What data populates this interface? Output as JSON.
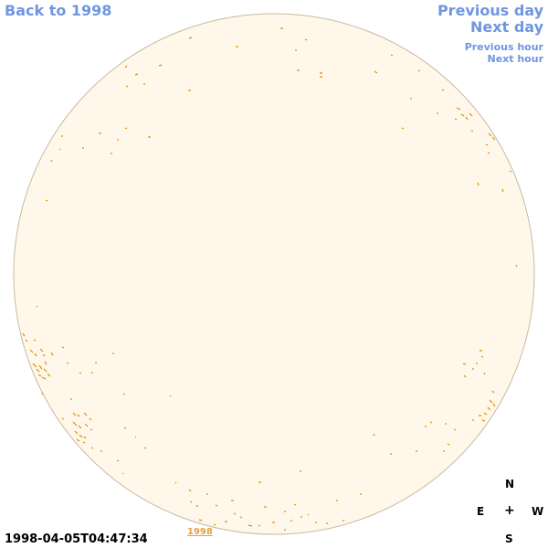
{
  "nav": {
    "back": "Back to 1998",
    "previous_day": "Previous day",
    "next_day": "Next day",
    "previous_hour": "Previous hour",
    "next_hour": "Next hour"
  },
  "timestamp": "1998-04-05T04:47:34",
  "year_link": "1998",
  "compass": {
    "n": "N",
    "e": "E",
    "center": "+",
    "w": "W",
    "s": "S"
  },
  "colors": {
    "disk_fill": "#fff8ea",
    "disk_stroke": "#c9b9a2",
    "contour": "#e68a00",
    "nav_link": "#6f96e0"
  }
}
